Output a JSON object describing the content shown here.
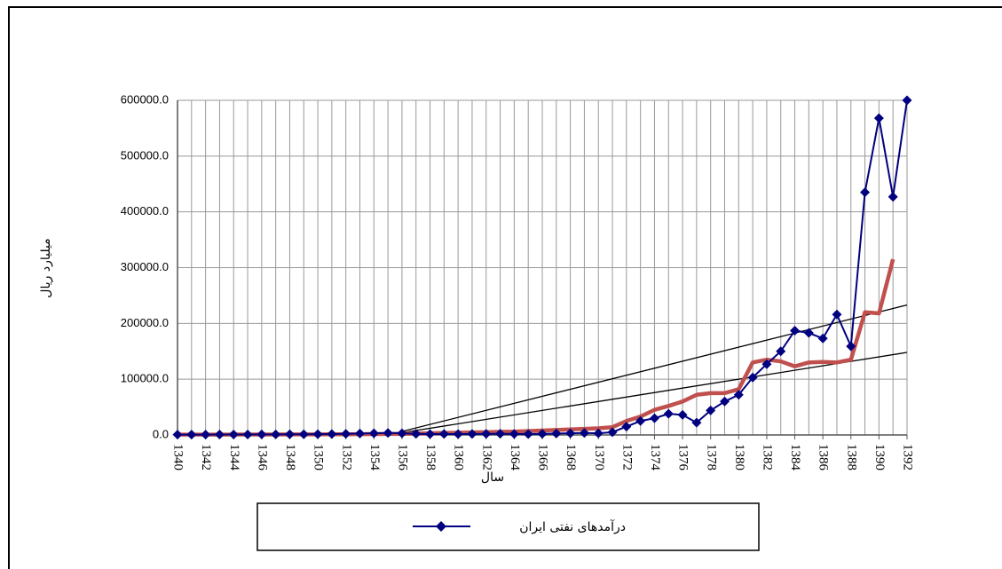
{
  "chart_data": {
    "type": "line",
    "ylabel": "میلیارد ریال",
    "xlabel": "سال",
    "x": [
      1340,
      1341,
      1342,
      1343,
      1344,
      1345,
      1346,
      1347,
      1348,
      1349,
      1350,
      1351,
      1352,
      1353,
      1354,
      1355,
      1356,
      1357,
      1358,
      1359,
      1360,
      1361,
      1362,
      1363,
      1364,
      1365,
      1366,
      1367,
      1368,
      1369,
      1370,
      1371,
      1372,
      1373,
      1374,
      1375,
      1376,
      1377,
      1378,
      1379,
      1380,
      1381,
      1382,
      1383,
      1384,
      1385,
      1386,
      1387,
      1388,
      1389,
      1390,
      1391,
      1392
    ],
    "xlim": [
      1340,
      1392
    ],
    "xticks": [
      1340,
      1342,
      1344,
      1346,
      1348,
      1350,
      1352,
      1354,
      1356,
      1358,
      1360,
      1362,
      1364,
      1366,
      1368,
      1370,
      1372,
      1374,
      1376,
      1378,
      1380,
      1382,
      1384,
      1386,
      1388,
      1390,
      1392
    ],
    "ylim": [
      0,
      600000
    ],
    "yticks": [
      {
        "value": 0,
        "label": "0.0"
      },
      {
        "value": 100000,
        "label": "100000.0"
      },
      {
        "value": 200000,
        "label": "200000.0"
      },
      {
        "value": 300000,
        "label": "300000.0"
      },
      {
        "value": 400000,
        "label": "400000.0"
      },
      {
        "value": 500000,
        "label": "500000.0"
      },
      {
        "value": 600000,
        "label": "600000.0"
      }
    ],
    "grid": true,
    "series": [
      {
        "name": "درآمدهای نفتی ایران",
        "color": "#000080",
        "marker": "diamond",
        "values": [
          500,
          500,
          600,
          700,
          700,
          800,
          900,
          1000,
          1100,
          1200,
          1400,
          1600,
          2000,
          2500,
          3000,
          3500,
          3000,
          2000,
          1500,
          1800,
          1500,
          1700,
          2000,
          2200,
          1800,
          1600,
          2000,
          2500,
          3000,
          3500,
          3000,
          5000,
          15000,
          25000,
          30000,
          38000,
          36000,
          22000,
          44000,
          60000,
          72000,
          103000,
          127000,
          150000,
          187000,
          183000,
          173000,
          216000,
          159000,
          435000,
          568000,
          427000,
          600000
        ]
      },
      {
        "color": "#c0504d",
        "values": [
          500,
          500,
          600,
          600,
          700,
          700,
          800,
          800,
          900,
          1000,
          1000,
          1100,
          1200,
          1300,
          1500,
          1700,
          2000,
          2500,
          3000,
          3500,
          4000,
          4500,
          5000,
          5500,
          6000,
          7000,
          8000,
          9000,
          10000,
          11000,
          12000,
          14000,
          25000,
          33000,
          45000,
          52000,
          60000,
          72000,
          75000,
          75000,
          82000,
          130000,
          135000,
          132000,
          123000,
          130000,
          131000,
          130000,
          135000,
          220000,
          218000,
          315000,
          null
        ]
      }
    ],
    "trendlines": [
      {
        "color": "#000000",
        "x": [
          1355,
          1392
        ],
        "values": [
          0,
          233000
        ]
      },
      {
        "color": "#000000",
        "x": [
          1355,
          1392
        ],
        "values": [
          0,
          148000
        ]
      }
    ]
  }
}
